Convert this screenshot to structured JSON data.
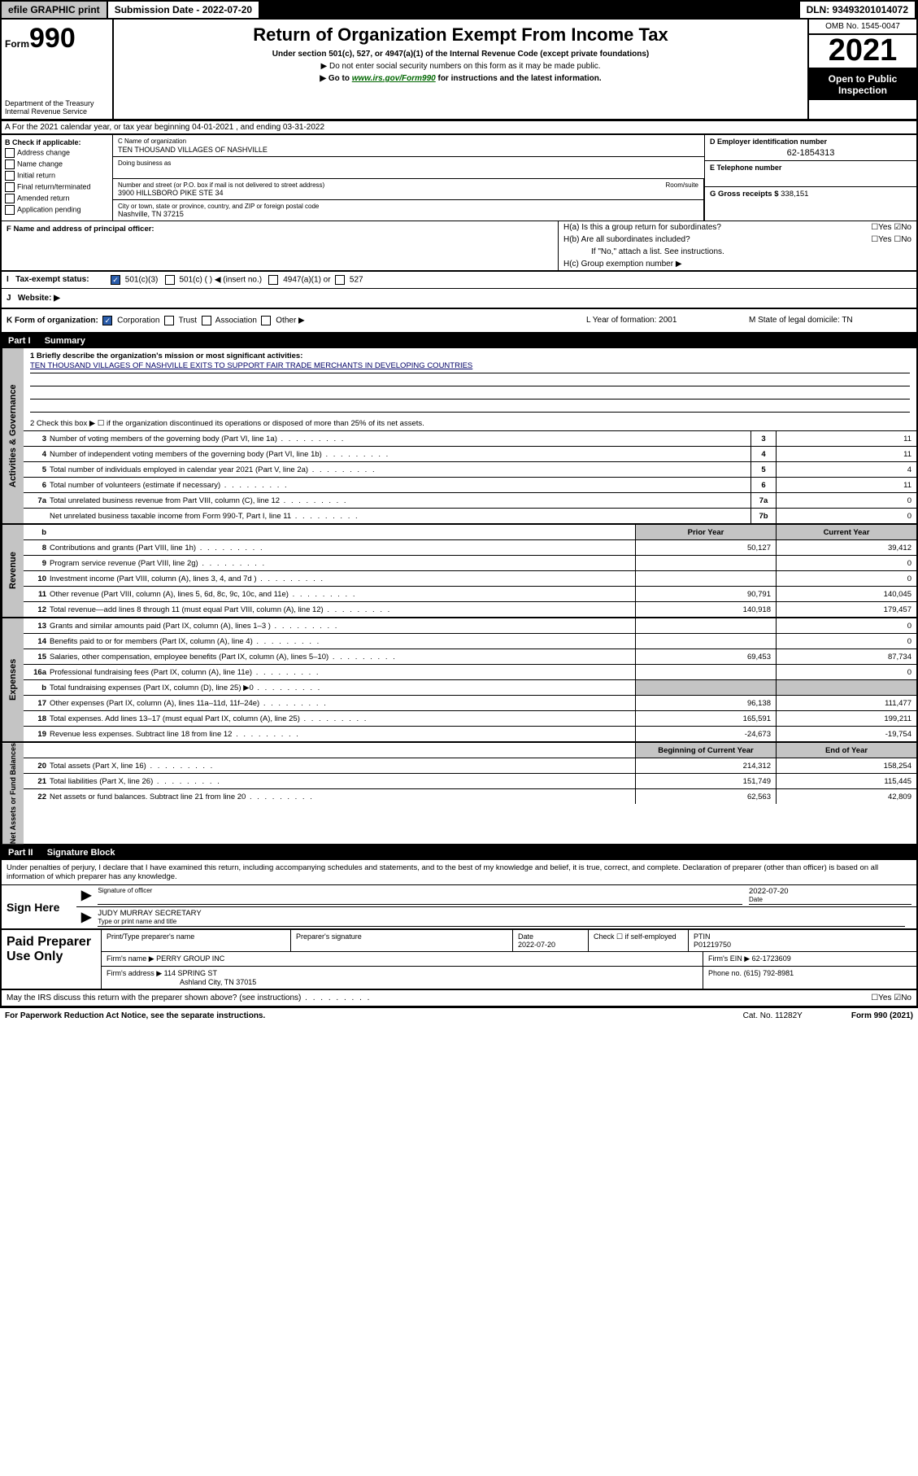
{
  "topbar": {
    "efile": "efile GRAPHIC print",
    "subdate_lbl": "Submission Date - 2022-07-20",
    "dln": "DLN: 93493201014072"
  },
  "header": {
    "form_word": "Form",
    "form_num": "990",
    "dept": "Department of the Treasury\nInternal Revenue Service",
    "title": "Return of Organization Exempt From Income Tax",
    "sub": "Under section 501(c), 527, or 4947(a)(1) of the Internal Revenue Code (except private foundations)",
    "note1": "▶ Do not enter social security numbers on this form as it may be made public.",
    "note2_pre": "▶ Go to ",
    "note2_link": "www.irs.gov/Form990",
    "note2_post": " for instructions and the latest information.",
    "omb": "OMB No. 1545-0047",
    "year": "2021",
    "pub": "Open to Public Inspection"
  },
  "row_a": "A For the 2021 calendar year, or tax year beginning 04-01-2021   , and ending 03-31-2022",
  "b": {
    "lbl": "B Check if applicable:",
    "opts": [
      "Address change",
      "Name change",
      "Initial return",
      "Final return/terminated",
      "Amended return",
      "Application pending"
    ]
  },
  "c": {
    "name_lbl": "C Name of organization",
    "name": "TEN THOUSAND VILLAGES OF NASHVILLE",
    "dba_lbl": "Doing business as",
    "addr_lbl": "Number and street (or P.O. box if mail is not delivered to street address)",
    "room_lbl": "Room/suite",
    "addr": "3900 HILLSBORO PIKE STE 34",
    "city_lbl": "City or town, state or province, country, and ZIP or foreign postal code",
    "city": "Nashville, TN  37215"
  },
  "d": {
    "lbl": "D Employer identification number",
    "val": "62-1854313"
  },
  "e": {
    "lbl": "E Telephone number",
    "val": ""
  },
  "g": {
    "lbl": "G Gross receipts $",
    "val": "338,151"
  },
  "f": {
    "lbl": "F  Name and address of principal officer:"
  },
  "h": {
    "a": "H(a)  Is this a group return for subordinates?",
    "b": "H(b)  Are all subordinates included?",
    "b2": "If \"No,\" attach a list. See instructions.",
    "c": "H(c)  Group exemption number ▶"
  },
  "i": {
    "lbl": "Tax-exempt status:",
    "opts": [
      "501(c)(3)",
      "501(c) (  ) ◀ (insert no.)",
      "4947(a)(1) or",
      "527"
    ]
  },
  "j": {
    "lbl": "Website: ▶"
  },
  "k": {
    "lbl": "K Form of organization:",
    "opts": [
      "Corporation",
      "Trust",
      "Association",
      "Other ▶"
    ],
    "l": "L Year of formation: 2001",
    "m": "M State of legal domicile: TN"
  },
  "parts": {
    "p1": "Part I",
    "p1t": "Summary",
    "p2": "Part II",
    "p2t": "Signature Block"
  },
  "vlabels": {
    "ag": "Activities & Governance",
    "rev": "Revenue",
    "exp": "Expenses",
    "na": "Net Assets or Fund Balances"
  },
  "q1": {
    "lbl": "1  Briefly describe the organization's mission or most significant activities:",
    "mission": "TEN THOUSAND VILLAGES OF NASHVILLE EXITS TO SUPPORT FAIR TRADE MERCHANTS IN DEVELOPING COUNTRIES"
  },
  "q2": "2   Check this box ▶ ☐  if the organization discontinued its operations or disposed of more than 25% of its net assets.",
  "rows_ag": [
    {
      "n": "3",
      "t": "Number of voting members of the governing body (Part VI, line 1a)",
      "box": "3",
      "v": "11"
    },
    {
      "n": "4",
      "t": "Number of independent voting members of the governing body (Part VI, line 1b)",
      "box": "4",
      "v": "11"
    },
    {
      "n": "5",
      "t": "Total number of individuals employed in calendar year 2021 (Part V, line 2a)",
      "box": "5",
      "v": "4"
    },
    {
      "n": "6",
      "t": "Total number of volunteers (estimate if necessary)",
      "box": "6",
      "v": "11"
    },
    {
      "n": "7a",
      "t": "Total unrelated business revenue from Part VIII, column (C), line 12",
      "box": "7a",
      "v": "0"
    },
    {
      "n": "",
      "t": "Net unrelated business taxable income from Form 990-T, Part I, line 11",
      "box": "7b",
      "v": "0"
    }
  ],
  "col_hdr": {
    "b": "b",
    "py": "Prior Year",
    "cy": "Current Year"
  },
  "rows_rev": [
    {
      "n": "8",
      "t": "Contributions and grants (Part VIII, line 1h)",
      "py": "50,127",
      "cy": "39,412"
    },
    {
      "n": "9",
      "t": "Program service revenue (Part VIII, line 2g)",
      "py": "",
      "cy": "0"
    },
    {
      "n": "10",
      "t": "Investment income (Part VIII, column (A), lines 3, 4, and 7d )",
      "py": "",
      "cy": "0"
    },
    {
      "n": "11",
      "t": "Other revenue (Part VIII, column (A), lines 5, 6d, 8c, 9c, 10c, and 11e)",
      "py": "90,791",
      "cy": "140,045"
    },
    {
      "n": "12",
      "t": "Total revenue—add lines 8 through 11 (must equal Part VIII, column (A), line 12)",
      "py": "140,918",
      "cy": "179,457"
    }
  ],
  "rows_exp": [
    {
      "n": "13",
      "t": "Grants and similar amounts paid (Part IX, column (A), lines 1–3 )",
      "py": "",
      "cy": "0"
    },
    {
      "n": "14",
      "t": "Benefits paid to or for members (Part IX, column (A), line 4)",
      "py": "",
      "cy": "0"
    },
    {
      "n": "15",
      "t": "Salaries, other compensation, employee benefits (Part IX, column (A), lines 5–10)",
      "py": "69,453",
      "cy": "87,734"
    },
    {
      "n": "16a",
      "t": "Professional fundraising fees (Part IX, column (A), line 11e)",
      "py": "",
      "cy": "0"
    },
    {
      "n": "b",
      "t": "Total fundraising expenses (Part IX, column (D), line 25) ▶0",
      "py": "shade",
      "cy": "shade"
    },
    {
      "n": "17",
      "t": "Other expenses (Part IX, column (A), lines 11a–11d, 11f–24e)",
      "py": "96,138",
      "cy": "111,477"
    },
    {
      "n": "18",
      "t": "Total expenses. Add lines 13–17 (must equal Part IX, column (A), line 25)",
      "py": "165,591",
      "cy": "199,211"
    },
    {
      "n": "19",
      "t": "Revenue less expenses. Subtract line 18 from line 12",
      "py": "-24,673",
      "cy": "-19,754"
    }
  ],
  "col_hdr2": {
    "py": "Beginning of Current Year",
    "cy": "End of Year"
  },
  "rows_na": [
    {
      "n": "20",
      "t": "Total assets (Part X, line 16)",
      "py": "214,312",
      "cy": "158,254"
    },
    {
      "n": "21",
      "t": "Total liabilities (Part X, line 26)",
      "py": "151,749",
      "cy": "115,445"
    },
    {
      "n": "22",
      "t": "Net assets or fund balances. Subtract line 21 from line 20",
      "py": "62,563",
      "cy": "42,809"
    }
  ],
  "sig": {
    "decl": "Under penalties of perjury, I declare that I have examined this return, including accompanying schedules and statements, and to the best of my knowledge and belief, it is true, correct, and complete. Declaration of preparer (other than officer) is based on all information of which preparer has any knowledge.",
    "sign_here": "Sign Here",
    "sig_lbl": "Signature of officer",
    "date": "2022-07-20",
    "date_lbl": "Date",
    "name": "JUDY MURRAY  SECRETARY",
    "name_lbl": "Type or print name and title"
  },
  "pp": {
    "title": "Paid Preparer Use Only",
    "h": [
      "Print/Type preparer's name",
      "Preparer's signature",
      "Date",
      "",
      "PTIN"
    ],
    "date": "2022-07-20",
    "check": "Check ☐ if self-employed",
    "ptin": "P01219750",
    "firm_lbl": "Firm's name   ▶",
    "firm": "PERRY GROUP INC",
    "ein_lbl": "Firm's EIN ▶",
    "ein": "62-1723609",
    "addr_lbl": "Firm's address ▶",
    "addr": "114 SPRING ST",
    "addr2": "Ashland City, TN  37015",
    "phone_lbl": "Phone no.",
    "phone": "(615) 792-8981"
  },
  "may": "May the IRS discuss this return with the preparer shown above? (see instructions)",
  "footer": {
    "l": "For Paperwork Reduction Act Notice, see the separate instructions.",
    "c": "Cat. No. 11282Y",
    "r": "Form 990 (2021)"
  }
}
